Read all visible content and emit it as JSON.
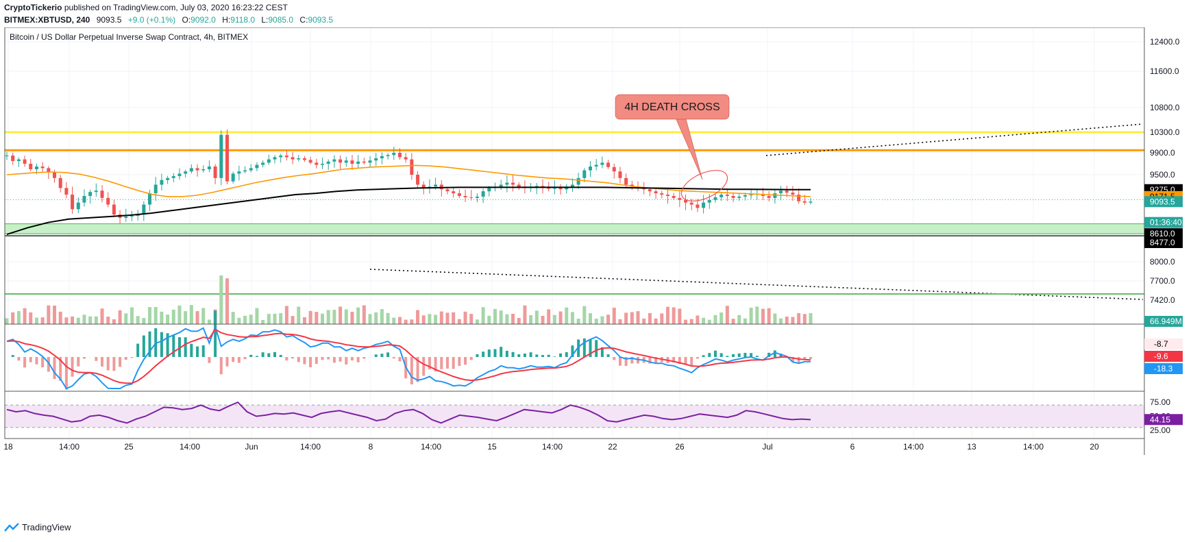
{
  "header": {
    "author": "CryptoTickerio",
    "published_text": "published on TradingView.com, July 03, 2020 16:23:22 CEST",
    "symbol": "BITMEX:XBTUSD, 240",
    "last": "9093.5",
    "change": "+9.0 (+0.1%)",
    "open_label": "O:",
    "open": "9092.0",
    "high_label": "H:",
    "high": "9118.0",
    "low_label": "L:",
    "low": "9085.0",
    "close_label": "C:",
    "close": "9093.5"
  },
  "footer": {
    "brand": "TradingView"
  },
  "colors": {
    "up": "#26a69a",
    "down": "#ef5350",
    "ma_fast": "#ff9800",
    "ma_slow": "#000000",
    "macd": "#2196f3",
    "signal": "#f23645",
    "rsi": "#7b1fa2",
    "rsi_band": "#e1bee7",
    "resistance_yellow": "#ffeb3b",
    "resistance_orange": "#ff9800",
    "support_green": "#c8f0c8",
    "annotation": "#f28b82"
  },
  "chart_data": {
    "type": "candlestick",
    "title": "Bitcoin / US Dollar Perpetual Inverse Swap Contract, 4h, BITMEX",
    "x_ticks": [
      "18",
      "14:00",
      "25",
      "14:00",
      "Jun",
      "14:00",
      "8",
      "14:00",
      "15",
      "14:00",
      "22",
      "26",
      "Jul",
      "6",
      "14:00",
      "13",
      "14:00",
      "20"
    ],
    "y_ticks": [
      12400,
      11600,
      10800,
      10300,
      9900,
      9500,
      8000,
      7700,
      7420
    ],
    "ylim": [
      7300,
      12700
    ],
    "price_tags": [
      {
        "value": "9275.0",
        "price": 9275,
        "color": "#000000",
        "text_color": "#ffffff"
      },
      {
        "value": "9171.5",
        "price": 9171.5,
        "color": "#ff9800",
        "text_color": "#000000"
      },
      {
        "value": "9093.5",
        "price": 9093.5,
        "color": "#26a69a",
        "text_color": "#ffffff"
      },
      {
        "value": "01:36:40",
        "price": 8780,
        "color": "#26a69a",
        "text_color": "#ffffff"
      },
      {
        "value": "8610.0",
        "price": 8610,
        "color": "#000000",
        "text_color": "#ffffff"
      },
      {
        "value": "8477.0",
        "price": 8477,
        "color": "#000000",
        "text_color": "#ffffff"
      }
    ],
    "horizontal_levels": [
      {
        "price": 10300,
        "color": "#ffeb3b"
      },
      {
        "price": 9950,
        "color": "#ff9800"
      }
    ],
    "support_zone": [
      8610,
      8760
    ],
    "annotation": {
      "text": "4H DEATH CROSS"
    },
    "close_path": [
      9850,
      9750,
      9780,
      9700,
      9600,
      9650,
      9620,
      9550,
      9450,
      9300,
      9200,
      8980,
      9080,
      9180,
      9240,
      9260,
      9150,
      9050,
      8900,
      8850,
      8870,
      8880,
      8900,
      9050,
      9220,
      9350,
      9420,
      9450,
      9480,
      9520,
      9560,
      9620,
      9580,
      9600,
      9650,
      9450,
      10250,
      9400,
      9520,
      9560,
      9580,
      9620,
      9680,
      9720,
      9780,
      9820,
      9850,
      9820,
      9780,
      9800,
      9770,
      9720,
      9680,
      9700,
      9740,
      9780,
      9720,
      9760,
      9700,
      9740,
      9720,
      9760,
      9800,
      9840,
      9860,
      9900,
      9820,
      9780,
      9500,
      9350,
      9300,
      9320,
      9350,
      9280,
      9250,
      9220,
      9180,
      9160,
      9150,
      9170,
      9250,
      9300,
      9320,
      9350,
      9380,
      9350,
      9320,
      9300,
      9320,
      9330,
      9310,
      9290,
      9300,
      9280,
      9320,
      9350,
      9450,
      9580,
      9650,
      9680,
      9720,
      9640,
      9560,
      9450,
      9350,
      9320,
      9300,
      9280,
      9250,
      9220,
      9200,
      9180,
      9150,
      9120,
      9080,
      9050,
      9000,
      9080,
      9120,
      9160,
      9200,
      9180,
      9150,
      9170,
      9190,
      9200,
      9210,
      9180,
      9150,
      9220,
      9260,
      9230,
      9200,
      9100,
      9080,
      9095
    ],
    "ma_fast_path": [
      9500,
      9520,
      9540,
      9550,
      9540,
      9510,
      9460,
      9400,
      9330,
      9260,
      9200,
      9170,
      9170,
      9190,
      9230,
      9280,
      9330,
      9380,
      9420,
      9460,
      9490,
      9520,
      9560,
      9600,
      9620,
      9640,
      9650,
      9660,
      9670,
      9660,
      9640,
      9610,
      9580,
      9550,
      9520,
      9490,
      9470,
      9450,
      9440,
      9420,
      9400,
      9380,
      9350,
      9320,
      9300,
      9280,
      9260,
      9250,
      9240,
      9230,
      9220,
      9210,
      9200,
      9190,
      9180,
      9170
    ],
    "ma_slow_path": [
      8600,
      8700,
      8780,
      8830,
      8850,
      8870,
      8890,
      8920,
      8960,
      9000,
      9040,
      9080,
      9120,
      9160,
      9200,
      9220,
      9250,
      9270,
      9280,
      9290,
      9300,
      9305,
      9310,
      9310,
      9310,
      9310,
      9310,
      9310,
      9310,
      9310,
      9305,
      9300,
      9295,
      9290,
      9285,
      9280,
      9280,
      9278,
      9276,
      9275
    ],
    "volume": {
      "last_label": "66.949M"
    },
    "macd": {
      "values": [
        "-8.7",
        "-9.6",
        "-18.3"
      ]
    },
    "rsi": {
      "y_ticks": [
        75.0,
        50.0,
        25.0
      ],
      "last_label": "44.15",
      "band": [
        30,
        70
      ],
      "path": [
        62,
        58,
        60,
        55,
        52,
        50,
        45,
        40,
        42,
        50,
        52,
        48,
        42,
        38,
        45,
        50,
        58,
        66,
        65,
        62,
        64,
        70,
        63,
        60,
        68,
        75,
        58,
        50,
        52,
        55,
        54,
        56,
        52,
        48,
        55,
        58,
        60,
        56,
        52,
        48,
        42,
        45,
        55,
        60,
        62,
        55,
        44,
        38,
        45,
        52,
        50,
        48,
        45,
        42,
        48,
        55,
        62,
        60,
        58,
        56,
        62,
        70,
        66,
        60,
        52,
        42,
        40,
        44,
        48,
        52,
        50,
        46,
        44,
        46,
        50,
        54,
        52,
        50,
        48,
        52,
        60,
        58,
        54,
        50,
        46,
        44,
        45,
        44
      ]
    }
  }
}
